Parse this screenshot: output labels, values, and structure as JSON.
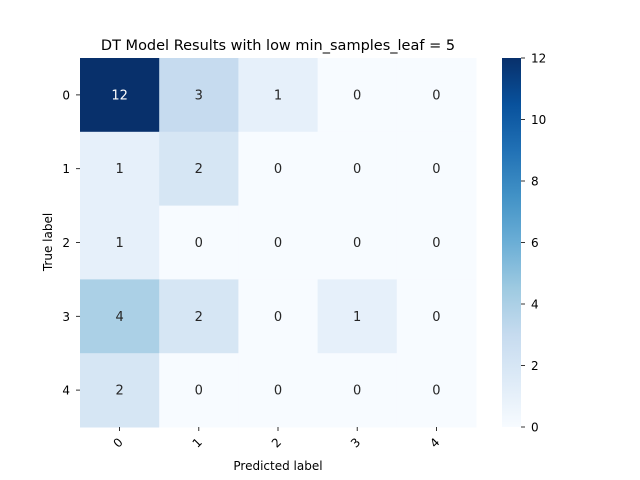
{
  "chart_data": {
    "type": "heatmap",
    "title": "DT Model Results with low min_samples_leaf = 5",
    "xlabel": "Predicted label",
    "ylabel": "True label",
    "x_categories": [
      "0",
      "1",
      "2",
      "3",
      "4"
    ],
    "y_categories": [
      "0",
      "1",
      "2",
      "3",
      "4"
    ],
    "matrix": [
      [
        12,
        3,
        1,
        0,
        0
      ],
      [
        1,
        2,
        0,
        0,
        0
      ],
      [
        1,
        0,
        0,
        0,
        0
      ],
      [
        4,
        2,
        0,
        1,
        0
      ],
      [
        2,
        0,
        0,
        0,
        0
      ]
    ],
    "colorbar": {
      "min": 0,
      "max": 12,
      "ticks": [
        "0",
        "2",
        "4",
        "6",
        "8",
        "10",
        "12"
      ],
      "colormap": "Blues"
    },
    "annotated": true,
    "grid": false
  }
}
